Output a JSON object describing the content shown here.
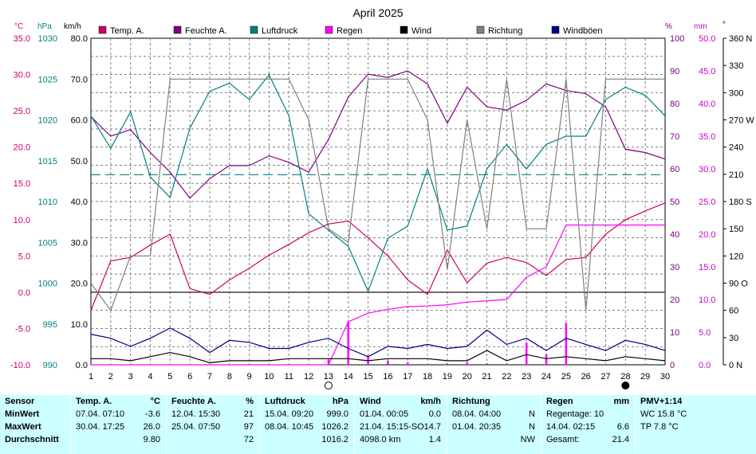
{
  "chart_data": {
    "type": "line",
    "title": "April 2025",
    "x": [
      1,
      2,
      3,
      4,
      5,
      6,
      7,
      8,
      9,
      10,
      11,
      12,
      13,
      14,
      15,
      16,
      17,
      18,
      19,
      20,
      21,
      22,
      23,
      24,
      25,
      26,
      27,
      28,
      29,
      30
    ],
    "x_tick_labels": [
      "1",
      "2",
      "3",
      "4",
      "5",
      "6",
      "7",
      "8",
      "9",
      "10",
      "11",
      "12",
      "13",
      "14",
      "15",
      "16",
      "17",
      "18",
      "19",
      "20",
      "21",
      "22",
      "23",
      "24",
      "25",
      "26",
      "27",
      "28",
      "29",
      "30"
    ],
    "grid": true,
    "legend_position": "top",
    "axes": {
      "temp": {
        "unit": "°C",
        "range": [
          -10,
          35
        ],
        "ticks": [
          "35.0",
          "30.0",
          "25.0",
          "20.0",
          "15.0",
          "10.0",
          "5.0",
          "0.0",
          "-5.0",
          "-10.0"
        ],
        "color": "#cc0066"
      },
      "pressure": {
        "unit": "hPa",
        "range": [
          990,
          1030
        ],
        "ticks": [
          "1030",
          "1025",
          "1020",
          "1015",
          "1010",
          "1005",
          "1000",
          "995",
          "990"
        ],
        "color": "#008080"
      },
      "wind": {
        "unit": "km/h",
        "range": [
          0,
          80
        ],
        "ticks": [
          "80.0",
          "70.0",
          "60.0",
          "50.0",
          "40.0",
          "30.0",
          "20.0",
          "10.0",
          "0.0"
        ],
        "color": "#000000"
      },
      "humidity": {
        "unit": "%",
        "range": [
          0,
          100
        ],
        "ticks": [
          "100",
          "90",
          "80",
          "70",
          "60",
          "50",
          "40",
          "30",
          "20",
          "10",
          "0"
        ],
        "color": "#800080"
      },
      "rain": {
        "unit": "mm",
        "range": [
          0,
          50
        ],
        "ticks": [
          "50.0",
          "45.0",
          "40.0",
          "35.0",
          "30.0",
          "25.0",
          "20.0",
          "15.0",
          "10.0",
          "5.0",
          "0.0"
        ],
        "color": "#cc00cc"
      },
      "direction": {
        "unit": "°",
        "range": [
          0,
          360
        ],
        "ticks": [
          "360 N",
          "330",
          "300",
          "270 W",
          "240",
          "210",
          "180 S",
          "150",
          "120",
          "90 O",
          "60",
          "30",
          "0 N"
        ],
        "color": "#000000"
      }
    },
    "series": [
      {
        "name": "Temp. A.",
        "axis": "temp",
        "color": "#cc0066",
        "values": [
          -2.5,
          4.3,
          4.8,
          6.5,
          8.0,
          0.5,
          -0.3,
          1.7,
          3.3,
          5.1,
          6.6,
          8.2,
          9.4,
          9.8,
          7.5,
          5.0,
          1.7,
          -0.3,
          5.8,
          1.3,
          4.0,
          4.8,
          4.1,
          2.3,
          4.5,
          4.8,
          8.0,
          10.0,
          11.2,
          12.3
        ]
      },
      {
        "name": "Feuchte A.",
        "axis": "humidity",
        "color": "#800080",
        "values": [
          76,
          70,
          72,
          65,
          59,
          51,
          57,
          61,
          61,
          64,
          62,
          59,
          69,
          82,
          89,
          88,
          90,
          86,
          74,
          85,
          79,
          78,
          81,
          86,
          84,
          83,
          79,
          66,
          65,
          63
        ]
      },
      {
        "name": "Luftdruck",
        "axis": "pressure",
        "color": "#008080",
        "values": [
          1020.5,
          1016.5,
          1021.0,
          1013.0,
          1010.5,
          1019.0,
          1023.5,
          1024.5,
          1022.5,
          1025.5,
          1020.5,
          1008.5,
          1006.5,
          1004.5,
          999.0,
          1005.5,
          1007.0,
          1014.0,
          1006.5,
          1007.0,
          1014.0,
          1017.0,
          1014.0,
          1017.0,
          1018.0,
          1018.0,
          1022.5,
          1024.0,
          1023.0,
          1020.5
        ]
      },
      {
        "name": "Regen",
        "axis": "rain",
        "color": "#ff00ff",
        "values": [
          0,
          0,
          0,
          0,
          0,
          0,
          0,
          0,
          0,
          0,
          0,
          0,
          0,
          6.6,
          7.9,
          8.5,
          8.9,
          9.0,
          9.2,
          9.6,
          9.8,
          10.0,
          13.4,
          15.0,
          21.4,
          21.4,
          21.4,
          21.4,
          21.4,
          21.4
        ]
      },
      {
        "name": "Wind",
        "axis": "wind",
        "color": "#000000",
        "values": [
          1.5,
          1.5,
          1.0,
          2.0,
          3.0,
          2.0,
          0.5,
          1.0,
          1.0,
          1.0,
          1.5,
          1.5,
          1.5,
          1.5,
          1.0,
          1.5,
          1.5,
          1.5,
          1.0,
          1.0,
          3.5,
          1.0,
          2.5,
          1.5,
          2.0,
          1.5,
          1.0,
          2.0,
          1.5,
          1.0
        ]
      },
      {
        "name": "Richtung",
        "axis": "direction",
        "color": "#808080",
        "values": [
          90,
          60,
          120,
          120,
          315,
          315,
          315,
          315,
          315,
          315,
          315,
          270,
          150,
          135,
          315,
          315,
          315,
          270,
          105,
          270,
          150,
          315,
          150,
          150,
          315,
          60,
          315,
          315,
          315,
          315
        ]
      },
      {
        "name": "Windböen",
        "axis": "wind",
        "color": "#000080",
        "values": [
          7.5,
          6.5,
          4.5,
          6.5,
          9.0,
          6.5,
          3.0,
          6.0,
          5.5,
          4.0,
          4.0,
          5.5,
          6.5,
          4.0,
          2.0,
          4.5,
          4.0,
          5.0,
          4.0,
          4.5,
          8.5,
          5.0,
          6.5,
          3.5,
          6.5,
          5.0,
          3.5,
          6.0,
          5.0,
          3.5
        ]
      }
    ],
    "rain_bars": {
      "days": [
        13,
        14,
        15,
        16,
        17,
        18,
        19,
        20,
        21,
        22,
        23,
        24,
        25
      ],
      "values": [
        0.8,
        6.6,
        1.3,
        0.6,
        0.4,
        0.1,
        0.2,
        0.4,
        0.2,
        0.2,
        3.4,
        1.6,
        6.4
      ]
    },
    "reference_line": {
      "label": "",
      "axis": "temp",
      "value": 16.2,
      "color": "#008080"
    },
    "moon_phases": [
      {
        "day": 13,
        "phase": "full"
      },
      {
        "day": 28,
        "phase": "new"
      }
    ]
  },
  "summary": {
    "row_labels": [
      "Sensor",
      "MinWert",
      "MaxWert",
      "Durchschnitt"
    ],
    "sections": [
      {
        "title": "Temp. A.",
        "unit": "°C",
        "min_time": "07.04.  07:10",
        "min_value": "-3.6",
        "max_time": "30.04.  17:25",
        "max_value": "26.0",
        "avg_value": "9.80"
      },
      {
        "title": "Feuchte A.",
        "unit": "%",
        "min_time": "12.04.  15:30",
        "min_value": "21",
        "max_time": "25.04.  07:50",
        "max_value": "97",
        "avg_value": "72"
      },
      {
        "title": "Luftdruck",
        "unit": "hPa",
        "min_time": "15.04.  09:20",
        "min_value": "999.0",
        "max_time": "08.04.  10:45",
        "max_value": "1026.2",
        "avg_value": "1016.2"
      },
      {
        "title": "Wind",
        "unit": "km/h",
        "min_time": "01.04.  00:05",
        "min_value": "0.0",
        "max_time": "21.04.  15:15-SO",
        "max_value": "14.7",
        "avg_extra": "4098.0 km",
        "avg_value": "1.4"
      },
      {
        "title": "Richtung",
        "unit": "",
        "min_time": "08.04.  04:00",
        "min_value": "N",
        "max_time": "01.04.  20:35",
        "max_value": "N",
        "avg_value": "NW"
      },
      {
        "title": "Regen",
        "unit": "mm",
        "min_time": "Regentage: 10",
        "min_value": "",
        "max_time": "14.04.  02:15",
        "max_value": "6.6",
        "avg_extra": "Gesamt:",
        "avg_value": "21.4"
      },
      {
        "title": "PMV+1:14",
        "unit": "",
        "min_time": "WC 15.8 °C",
        "min_value": "",
        "max_time": "TP 7.8 °C",
        "max_value": "",
        "avg_value": ""
      }
    ]
  }
}
